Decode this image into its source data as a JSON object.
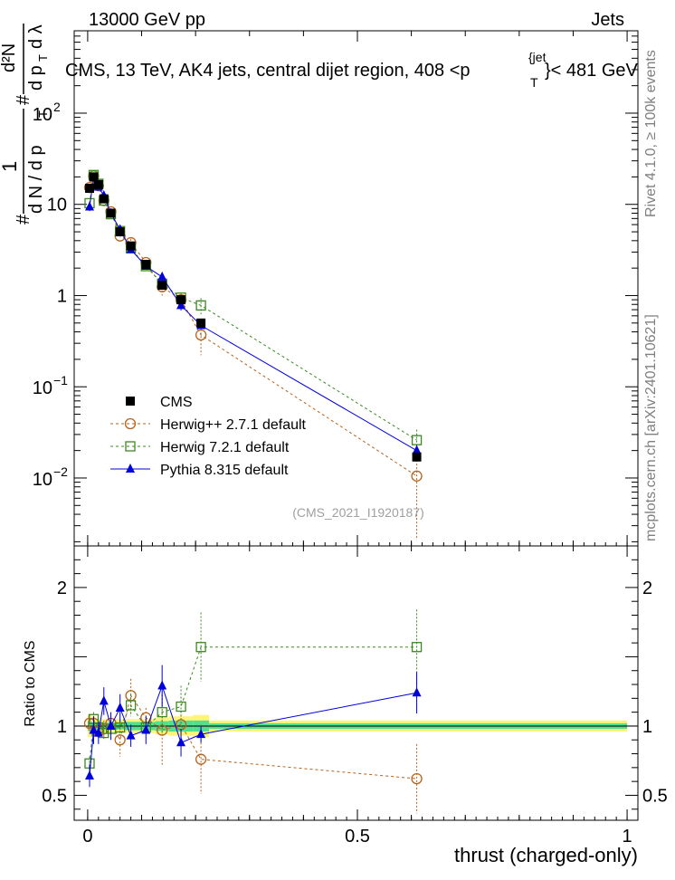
{
  "header": {
    "left": "13000 GeV pp",
    "right": "Jets",
    "title_main": "CMS, 13 TeV, AK4 jets, central dijet region, 408 <p",
    "title_sup": "{jet",
    "title_sub": "T",
    "title_end": "}< 481 GeV"
  },
  "side_labels": {
    "rivet": "Rivet 4.1.0, ≥ 100k events",
    "mcplots": "mcplots.cern.ch [arXiv:2401.10621]"
  },
  "watermark": "(CMS_2021_I1920187)",
  "colors": {
    "cms": "#000000",
    "herwigpp": "#b8621b",
    "herwig7": "#3a8a1f",
    "pythia": "#0000dd",
    "band_inner": "#52e090",
    "band_outer": "#fff37a"
  },
  "chart_data": {
    "type": "scatter",
    "xlabel": "thrust (charged-only)",
    "xlim": [
      -0.025,
      1.02
    ],
    "x_ticks": [
      "0",
      "0.5",
      "1"
    ],
    "x_tick_values": [
      0,
      0.5,
      1
    ],
    "main": {
      "yscale": "log",
      "ylim": [
        0.0018,
        800
      ],
      "ylabel_parts": [
        "1",
        "#",
        "d N / d p",
        "T",
        "#",
        "d p",
        "T",
        "d²N",
        "d λ"
      ],
      "y_ticks": [
        {
          "value": 0.01,
          "base": "10",
          "exp": "−2"
        },
        {
          "value": 0.1,
          "base": "10",
          "exp": "−1"
        },
        {
          "value": 1,
          "base": "1",
          "exp": ""
        },
        {
          "value": 10,
          "base": "10",
          "exp": ""
        },
        {
          "value": 100,
          "base": "10",
          "exp": "2"
        }
      ],
      "legend": [
        "CMS",
        "Herwig++ 2.7.1 default",
        "Herwig 7.2.1 default",
        "Pythia 8.315 default"
      ],
      "legend_placement": "bottom-left",
      "series": [
        {
          "name": "CMS",
          "key": "cms",
          "marker": "square-filled",
          "x": [
            0.0035,
            0.011,
            0.02,
            0.03,
            0.043,
            0.06,
            0.08,
            0.108,
            0.138,
            0.173,
            0.21,
            0.61
          ],
          "y": [
            15.0,
            20.0,
            16.5,
            11.5,
            8.0,
            5.0,
            3.5,
            2.2,
            1.3,
            0.9,
            0.5,
            0.017
          ]
        },
        {
          "name": "Herwig++ 2.7.1 default",
          "key": "herwigpp",
          "marker": "circle-open",
          "line": "dashed",
          "x": [
            0.0035,
            0.011,
            0.02,
            0.03,
            0.043,
            0.06,
            0.08,
            0.108,
            0.138,
            0.173,
            0.21,
            0.61
          ],
          "y": [
            15.3,
            20.5,
            16.0,
            11.0,
            8.3,
            4.5,
            3.8,
            2.3,
            1.25,
            0.9,
            0.37,
            0.0105
          ],
          "err": [
            0.04,
            0.05,
            0.05,
            0.05,
            0.05,
            0.05,
            0.1,
            0.05,
            0.2,
            0.1,
            0.4,
            0.8
          ]
        },
        {
          "name": "Herwig 7.2.1 default",
          "key": "herwig7",
          "marker": "square-open",
          "line": "dashed",
          "x": [
            0.0035,
            0.011,
            0.02,
            0.03,
            0.043,
            0.06,
            0.08,
            0.108,
            0.138,
            0.173,
            0.21,
            0.61
          ],
          "y": [
            10.3,
            21.0,
            16.8,
            11.0,
            7.8,
            5.1,
            3.3,
            2.1,
            1.35,
            0.95,
            0.78,
            0.026
          ],
          "err": [
            0.04,
            0.05,
            0.05,
            0.05,
            0.05,
            0.05,
            0.05,
            0.05,
            0.1,
            0.1,
            0.2,
            0.3
          ]
        },
        {
          "name": "Pythia 8.315 default",
          "key": "pythia",
          "marker": "triangle-filled",
          "line": "solid",
          "x": [
            0.0035,
            0.011,
            0.02,
            0.03,
            0.043,
            0.06,
            0.08,
            0.108,
            0.138,
            0.173,
            0.21,
            0.61
          ],
          "y": [
            9.4,
            19.5,
            15.5,
            12.5,
            8.0,
            5.3,
            3.2,
            2.1,
            1.6,
            0.78,
            0.47,
            0.02
          ],
          "err": [
            0.1,
            0.08,
            0.08,
            0.08,
            0.08,
            0.08,
            0.08,
            0.08,
            0.12,
            0.12,
            0.08,
            0.15
          ]
        }
      ]
    },
    "ratio": {
      "ylabel": "Ratio to CMS",
      "ylim": [
        0.32,
        2.3
      ],
      "y_ticks": [
        "0.5",
        "1",
        "2"
      ],
      "y_tick_values": [
        0.5,
        1,
        2
      ],
      "band_edges": [
        0,
        0.007,
        0.015,
        0.025,
        0.035,
        0.05,
        0.07,
        0.09,
        0.125,
        0.15,
        0.195,
        0.225,
        1.0
      ],
      "band_inner": [
        0.035,
        0.03,
        0.025,
        0.025,
        0.025,
        0.025,
        0.03,
        0.03,
        0.035,
        0.04,
        0.04,
        0.02
      ],
      "band_outer": [
        0.08,
        0.07,
        0.05,
        0.05,
        0.05,
        0.05,
        0.05,
        0.05,
        0.06,
        0.07,
        0.08,
        0.04
      ],
      "series": [
        {
          "key": "herwigpp",
          "marker": "circle-open",
          "line": "dashed",
          "x": [
            0.0035,
            0.011,
            0.02,
            0.03,
            0.043,
            0.06,
            0.08,
            0.108,
            0.138,
            0.173,
            0.21,
            0.61
          ],
          "y": [
            1.02,
            1.02,
            0.96,
            0.98,
            1.02,
            0.9,
            1.22,
            1.06,
            0.97,
            1.01,
            0.76,
            0.62
          ],
          "err": [
            0.06,
            0.05,
            0.05,
            0.06,
            0.06,
            0.12,
            0.12,
            0.07,
            0.26,
            0.1,
            0.25,
            0.25
          ]
        },
        {
          "key": "herwig7",
          "marker": "square-open",
          "line": "dashed",
          "x": [
            0.0035,
            0.011,
            0.02,
            0.03,
            0.043,
            0.06,
            0.08,
            0.108,
            0.138,
            0.173,
            0.21,
            0.61
          ],
          "y": [
            0.73,
            1.05,
            0.99,
            0.95,
            0.98,
            0.99,
            1.15,
            0.99,
            1.1,
            1.14,
            1.57,
            1.57
          ],
          "err": [
            0.05,
            0.05,
            0.05,
            0.05,
            0.05,
            0.05,
            0.08,
            0.05,
            0.15,
            0.15,
            0.25,
            0.27
          ]
        },
        {
          "key": "pythia",
          "marker": "triangle-filled",
          "line": "solid",
          "x": [
            0.0035,
            0.011,
            0.02,
            0.03,
            0.043,
            0.06,
            0.08,
            0.108,
            0.138,
            0.173,
            0.21,
            0.61
          ],
          "y": [
            0.64,
            0.97,
            0.95,
            1.18,
            1.0,
            1.13,
            0.93,
            0.97,
            1.29,
            0.88,
            0.94,
            1.24
          ],
          "err": [
            0.08,
            0.1,
            0.08,
            0.1,
            0.1,
            0.1,
            0.08,
            0.1,
            0.15,
            0.1,
            0.06,
            0.15
          ]
        }
      ]
    }
  }
}
